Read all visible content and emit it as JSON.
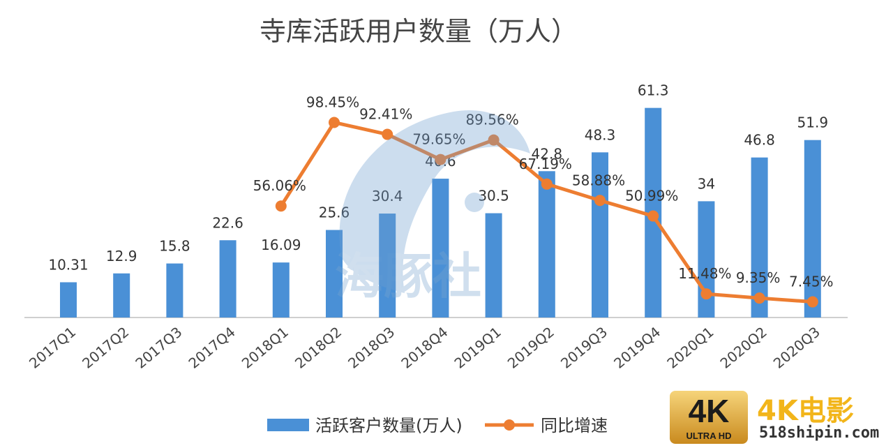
{
  "chart_data": {
    "type": "bar",
    "title": "寺库活跃用户数量（万人）",
    "categories": [
      "2017Q1",
      "2017Q2",
      "2017Q3",
      "2017Q4",
      "2018Q1",
      "2018Q2",
      "2018Q3",
      "2018Q4",
      "2019Q1",
      "2019Q2",
      "2019Q3",
      "2019Q4",
      "2020Q1",
      "2020Q2",
      "2020Q3"
    ],
    "series": [
      {
        "name": "活跃客户数量(万人)",
        "type": "bar",
        "values": [
          10.31,
          12.9,
          15.8,
          22.6,
          16.09,
          25.6,
          30.4,
          40.6,
          30.5,
          42.8,
          48.3,
          61.3,
          34,
          46.8,
          51.9
        ],
        "labels": [
          "10.31",
          "12.9",
          "15.8",
          "22.6",
          "16.09",
          "25.6",
          "30.4",
          "40.6",
          "30.5",
          "42.8",
          "48.3",
          "61.3",
          "34",
          "46.8",
          "51.9"
        ],
        "color": "#4a90d6"
      },
      {
        "name": "同比增速",
        "type": "line",
        "values": [
          null,
          null,
          null,
          null,
          56.06,
          98.45,
          92.41,
          79.65,
          89.56,
          67.19,
          58.88,
          50.99,
          11.48,
          9.35,
          7.45
        ],
        "labels": [
          "",
          "",
          "",
          "",
          "56.06%",
          "98.45%",
          "92.41%",
          "79.65%",
          "89.56%",
          "67.19%",
          "58.88%",
          "50.99%",
          "11.48%",
          "9.35%",
          "7.45%"
        ],
        "color": "#ed7d31"
      }
    ],
    "legend_position": "bottom",
    "grid": false
  },
  "watermark": {
    "text": "海豚社"
  },
  "badge": {
    "main": "4K",
    "sub": "ULTRA HD",
    "brand": "4K电影",
    "site": "518shipin.com"
  }
}
